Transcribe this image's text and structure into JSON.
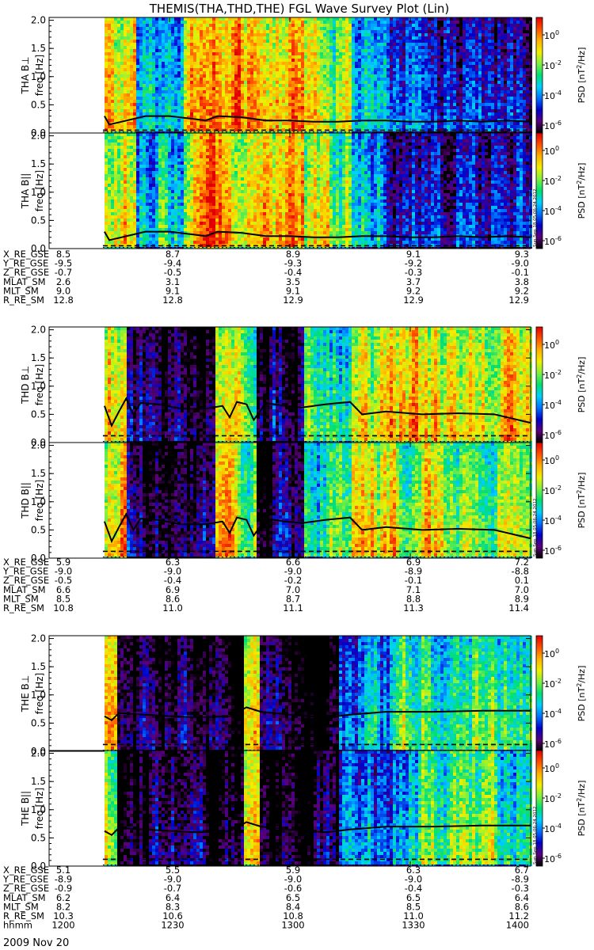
{
  "title": "THEMIS(THA,THD,THE) FGL Wave Survey Plot (Lin)",
  "date_label": "2009 Nov 20",
  "stamp": "Sun Sep 18 05:06:24 2012",
  "colorbar": {
    "label_prefix": "PSD [nT",
    "label_sup": "2",
    "label_suffix": "/Hz]",
    "tick_base": "10",
    "ticks": [
      {
        "exp": "0"
      },
      {
        "exp": "-2"
      },
      {
        "exp": "-4"
      },
      {
        "exp": "-6"
      }
    ],
    "colors": [
      "#000000",
      "#5a007a",
      "#0000c8",
      "#0070ff",
      "#00d0ff",
      "#00e070",
      "#80f040",
      "#f0f000",
      "#ffb000",
      "#ff5000",
      "#e00000"
    ]
  },
  "chart_data": {
    "type": "heatmap",
    "x_unit": "hhmm",
    "x_range": [
      1200,
      1400
    ],
    "freq_ticks": [
      "0.0",
      "0.5",
      "1.0",
      "1.5",
      "2.0"
    ],
    "freq_range": [
      0.0,
      2.05
    ],
    "spacecraft": [
      {
        "id": "tha",
        "panels": [
          {
            "label": "THA B⊥",
            "ylabel": "freq [Hz]"
          },
          {
            "label": "THA B||",
            "ylabel": "freq [Hz]"
          }
        ],
        "data_start_hhmm": 1223,
        "psd_segments": [
          [
            1223,
            1235,
            0.2
          ],
          [
            1235,
            1245,
            0.6
          ],
          [
            1245,
            1255,
            0.45
          ],
          [
            1255,
            1305,
            0.15
          ],
          [
            1305,
            1325,
            0.35
          ],
          [
            1325,
            1340,
            0.6
          ],
          [
            1340,
            1400,
            0.7
          ]
        ],
        "central_freq": [
          [
            1223,
            0.3
          ],
          [
            1225,
            0.15
          ],
          [
            1230,
            0.2
          ],
          [
            1240,
            0.3
          ],
          [
            1250,
            0.3
          ],
          [
            1260,
            0.25
          ],
          [
            1265,
            0.22
          ],
          [
            1270,
            0.3
          ],
          [
            1280,
            0.28
          ],
          [
            1290,
            0.22
          ],
          [
            1300,
            0.22
          ],
          [
            1310,
            0.2
          ],
          [
            1320,
            0.2
          ],
          [
            1330,
            0.22
          ],
          [
            1340,
            0.22
          ],
          [
            1350,
            0.2
          ],
          [
            1360,
            0.2
          ],
          [
            1370,
            0.22
          ],
          [
            1380,
            0.2
          ],
          [
            1390,
            0.22
          ],
          [
            1400,
            0.2
          ]
        ],
        "dashed_freq": 0.05,
        "ephemeris": {
          "X_RE_GSE": [
            "8.5",
            "8.7",
            "8.9",
            "9.1",
            "9.3"
          ],
          "Y_RE_GSE": [
            "-9.5",
            "-9.4",
            "-9.3",
            "-9.2",
            "-9.0"
          ],
          "Z_RE_GSE": [
            "-0.7",
            "-0.5",
            "-0.4",
            "-0.3",
            "-0.1"
          ],
          "MLAT_SM": [
            "2.6",
            "3.1",
            "3.5",
            "3.7",
            "3.8"
          ],
          "MLT_SM": [
            "9.0",
            "9.1",
            "9.1",
            "9.2",
            "9.2"
          ],
          "R_RE_SM": [
            "12.8",
            "12.8",
            "12.9",
            "12.9",
            "12.9"
          ]
        }
      },
      {
        "id": "thd",
        "panels": [
          {
            "label": "THD B⊥",
            "ylabel": "freq [Hz]"
          },
          {
            "label": "THD B||",
            "ylabel": "freq [Hz]"
          }
        ],
        "data_start_hhmm": 1223,
        "psd_segments": [
          [
            1223,
            1232,
            0.2
          ],
          [
            1232,
            1268,
            0.9
          ],
          [
            1268,
            1285,
            0.3
          ],
          [
            1285,
            1305,
            0.85
          ],
          [
            1305,
            1325,
            0.5
          ],
          [
            1325,
            1400,
            0.25
          ]
        ],
        "central_freq": [
          [
            1223,
            0.65
          ],
          [
            1226,
            0.3
          ],
          [
            1229,
            0.55
          ],
          [
            1232,
            0.78
          ],
          [
            1235,
            0.5
          ],
          [
            1238,
            0.7
          ],
          [
            1245,
            0.68
          ],
          [
            1255,
            0.6
          ],
          [
            1265,
            0.6
          ],
          [
            1272,
            0.65
          ],
          [
            1275,
            0.45
          ],
          [
            1278,
            0.72
          ],
          [
            1282,
            0.68
          ],
          [
            1285,
            0.4
          ],
          [
            1290,
            0.7
          ],
          [
            1298,
            0.65
          ],
          [
            1305,
            0.62
          ],
          [
            1315,
            0.68
          ],
          [
            1325,
            0.72
          ],
          [
            1330,
            0.5
          ],
          [
            1340,
            0.55
          ],
          [
            1355,
            0.5
          ],
          [
            1370,
            0.52
          ],
          [
            1385,
            0.5
          ],
          [
            1400,
            0.35
          ]
        ],
        "dashed_freq": 0.12,
        "ephemeris": {
          "X_RE_GSE": [
            "5.9",
            "6.3",
            "6.6",
            "6.9",
            "7.2"
          ],
          "Y_RE_GSE": [
            "-9.0",
            "-9.0",
            "-9.0",
            "-8.9",
            "-8.8"
          ],
          "Z_RE_GSE": [
            "-0.5",
            "-0.4",
            "-0.2",
            "-0.1",
            "0.1"
          ],
          "MLAT_SM": [
            "6.6",
            "6.9",
            "7.0",
            "7.1",
            "7.0"
          ],
          "MLT_SM": [
            "8.5",
            "8.6",
            "8.7",
            "8.8",
            "8.9"
          ],
          "R_RE_SM": [
            "10.8",
            "11.0",
            "11.1",
            "11.3",
            "11.4"
          ]
        }
      },
      {
        "id": "the",
        "panels": [
          {
            "label": "THE B⊥",
            "ylabel": "freq [Hz]"
          },
          {
            "label": "THE B||",
            "ylabel": "freq [Hz]"
          }
        ],
        "data_start_hhmm": 1223,
        "psd_segments": [
          [
            1223,
            1228,
            0.25
          ],
          [
            1228,
            1280,
            0.9
          ],
          [
            1280,
            1287,
            0.25
          ],
          [
            1287,
            1320,
            0.92
          ],
          [
            1320,
            1345,
            0.6
          ],
          [
            1345,
            1400,
            0.4
          ]
        ],
        "central_freq": [
          [
            1223,
            0.62
          ],
          [
            1226,
            0.55
          ],
          [
            1229,
            0.68
          ],
          [
            1240,
            0.65
          ],
          [
            1260,
            0.6
          ],
          [
            1275,
            0.62
          ],
          [
            1282,
            0.78
          ],
          [
            1288,
            0.7
          ],
          [
            1300,
            0.65
          ],
          [
            1315,
            0.6
          ],
          [
            1325,
            0.65
          ],
          [
            1340,
            0.7
          ],
          [
            1360,
            0.7
          ],
          [
            1380,
            0.72
          ],
          [
            1400,
            0.72
          ]
        ],
        "dashed_freq": 0.12,
        "ephemeris": {
          "X_RE_GSE": [
            "5.1",
            "5.5",
            "5.9",
            "6.3",
            "6.7"
          ],
          "Y_RE_GSE": [
            "-8.9",
            "-9.0",
            "-9.0",
            "-9.0",
            "-8.9"
          ],
          "Z_RE_GSE": [
            "-0.9",
            "-0.7",
            "-0.6",
            "-0.4",
            "-0.3"
          ],
          "MLAT_SM": [
            "6.2",
            "6.4",
            "6.5",
            "6.5",
            "6.4"
          ],
          "MLT_SM": [
            "8.2",
            "8.3",
            "8.4",
            "8.5",
            "8.6"
          ],
          "R_RE_SM": [
            "10.3",
            "10.6",
            "10.8",
            "11.0",
            "11.2"
          ],
          "hhmm": [
            "1200",
            "1230",
            "1300",
            "1330",
            "1400"
          ]
        }
      }
    ]
  }
}
